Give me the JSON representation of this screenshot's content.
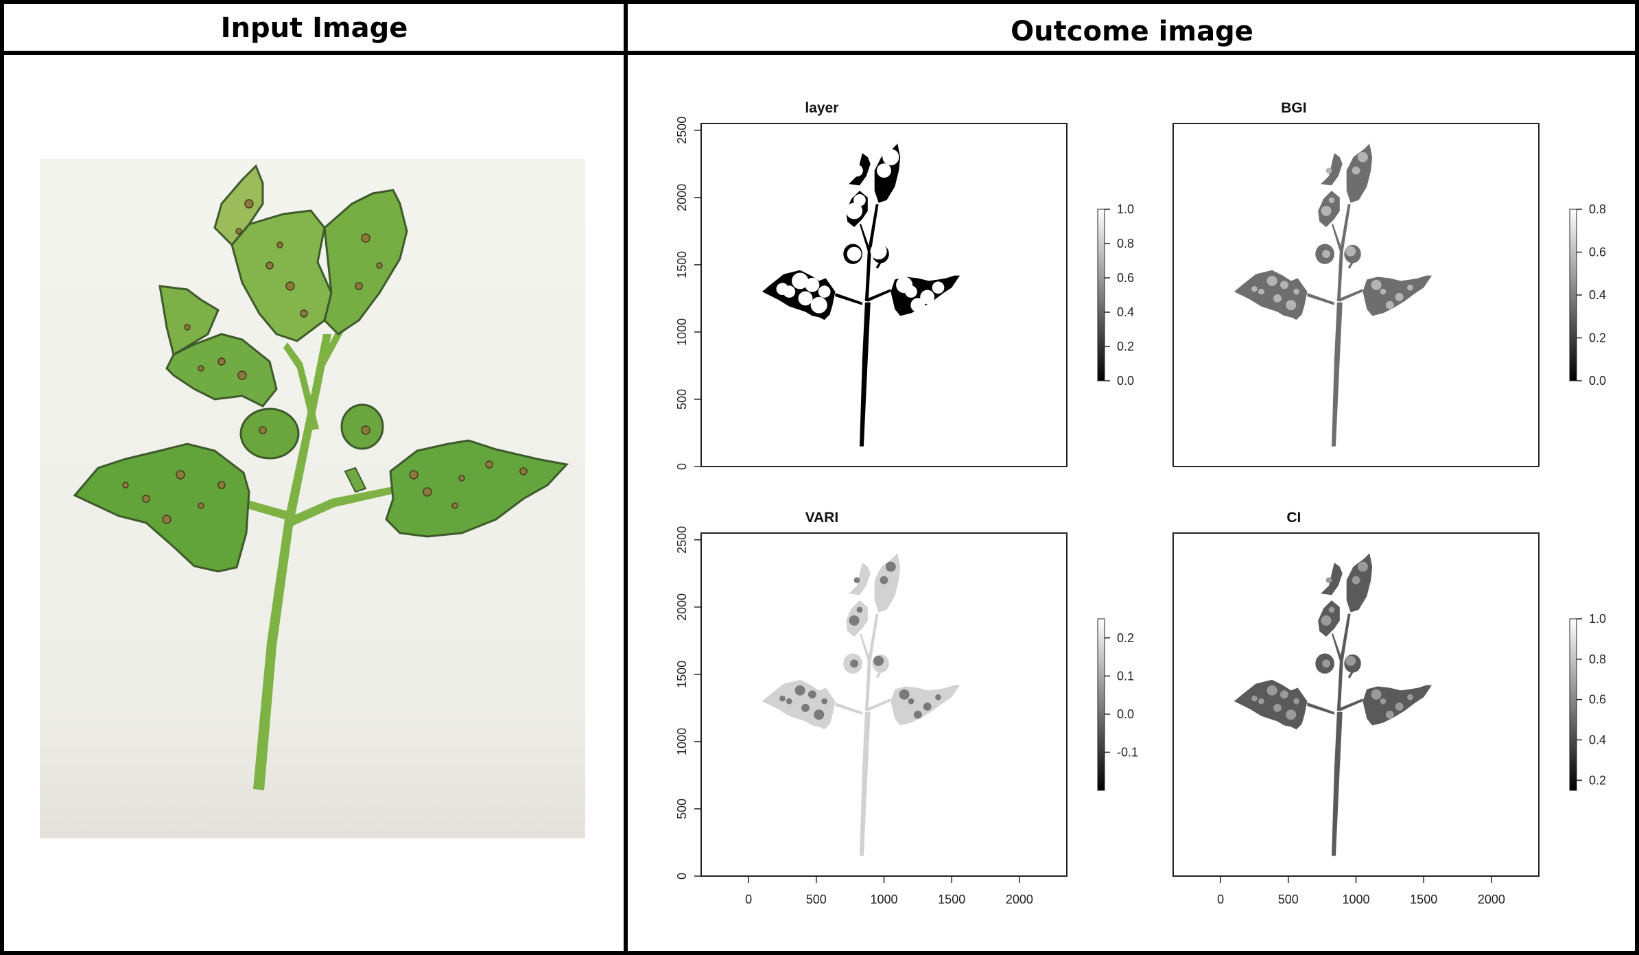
{
  "headers": {
    "input": "Input Image",
    "outcome": "Outcome image"
  },
  "axes": {
    "x_ticks": [
      "0",
      "500",
      "1000",
      "1500",
      "2000"
    ],
    "y_ticks": [
      "0",
      "500",
      "1000",
      "1500",
      "2000",
      "2500"
    ]
  },
  "panels": [
    {
      "title": "layer",
      "style": "binary",
      "colorbar": {
        "min": 0.0,
        "max": 1.0,
        "ticks": [
          "0.0",
          "0.2",
          "0.4",
          "0.6",
          "0.8",
          "1.0"
        ]
      }
    },
    {
      "title": "BGI",
      "style": "bgi",
      "colorbar": {
        "min": 0.0,
        "max": 0.8,
        "ticks": [
          "0.0",
          "0.2",
          "0.4",
          "0.6",
          "0.8"
        ]
      }
    },
    {
      "title": "VARI",
      "style": "vari",
      "colorbar": {
        "min": -0.2,
        "max": 0.25,
        "ticks": [
          "-0.1",
          "0.0",
          "0.1",
          "0.2"
        ]
      }
    },
    {
      "title": "CI",
      "style": "ci",
      "colorbar": {
        "min": 0.15,
        "max": 1.0,
        "ticks": [
          "0.2",
          "0.4",
          "0.6",
          "0.8",
          "1.0"
        ]
      }
    }
  ],
  "colors": {
    "border": "#000000",
    "leaf_green": "#6ea83e",
    "leaf_dark": "#4f8a2a",
    "background_photo": "#f2f2ec"
  }
}
